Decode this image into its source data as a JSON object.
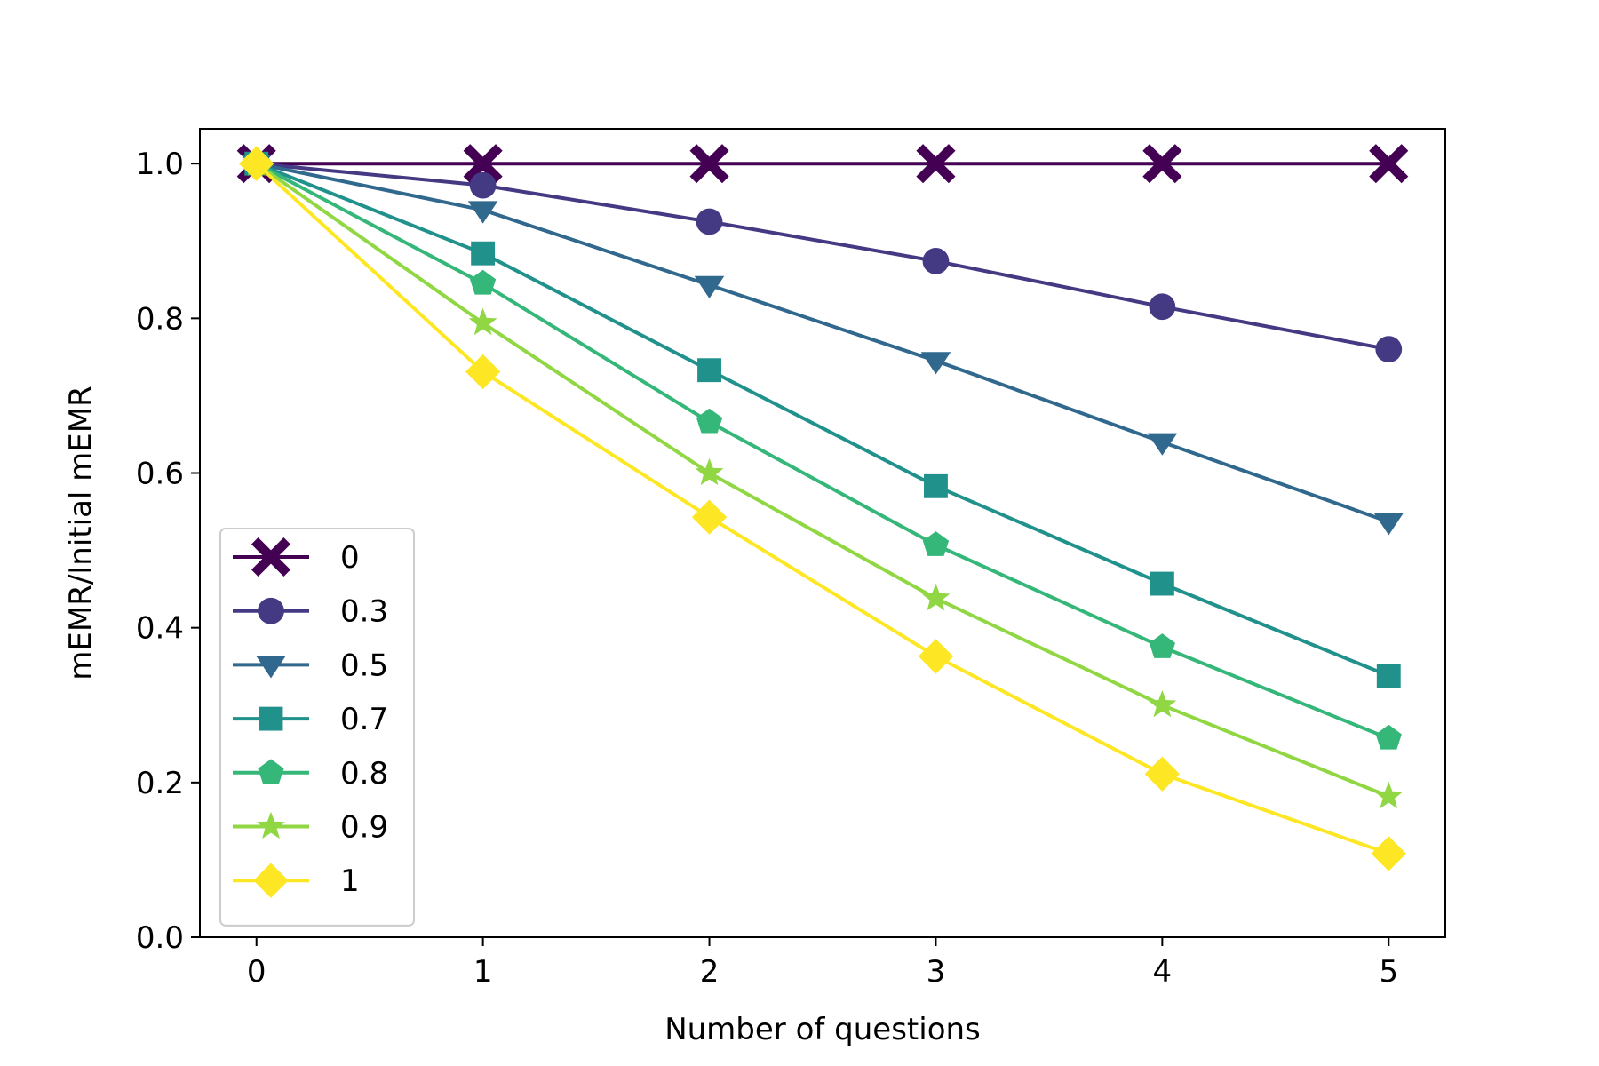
{
  "chart_data": {
    "type": "line",
    "title": "",
    "xlabel": "Number of questions",
    "ylabel": "mEMR/Initial mEMR",
    "x": [
      0,
      1,
      2,
      3,
      4,
      5
    ],
    "xticks": [
      0,
      1,
      2,
      3,
      4,
      5
    ],
    "yticks": [
      0.0,
      0.2,
      0.4,
      0.6,
      0.8,
      1.0
    ],
    "ytick_labels": [
      "0.0",
      "0.2",
      "0.4",
      "0.6",
      "0.8",
      "1.0"
    ],
    "xlim": [
      -0.25,
      5.25
    ],
    "ylim": [
      0.0,
      1.045
    ],
    "grid": false,
    "legend_position": "lower-left",
    "series": [
      {
        "name": "0",
        "color": "#440154",
        "marker": "x-filled",
        "values": [
          1.0,
          1.0,
          1.0,
          1.0,
          1.0,
          1.0
        ]
      },
      {
        "name": "0.3",
        "color": "#443983",
        "marker": "circle",
        "values": [
          1.0,
          0.972,
          0.925,
          0.874,
          0.815,
          0.76
        ]
      },
      {
        "name": "0.5",
        "color": "#31688e",
        "marker": "triangle-down",
        "values": [
          1.0,
          0.94,
          0.843,
          0.745,
          0.64,
          0.537
        ]
      },
      {
        "name": "0.7",
        "color": "#21918c",
        "marker": "square",
        "values": [
          1.0,
          0.884,
          0.733,
          0.583,
          0.457,
          0.338
        ]
      },
      {
        "name": "0.8",
        "color": "#35b779",
        "marker": "pentagon",
        "values": [
          1.0,
          0.845,
          0.666,
          0.507,
          0.375,
          0.257
        ]
      },
      {
        "name": "0.9",
        "color": "#90d743",
        "marker": "star",
        "values": [
          1.0,
          0.794,
          0.6,
          0.438,
          0.3,
          0.182
        ]
      },
      {
        "name": "1",
        "color": "#fde725",
        "marker": "diamond",
        "values": [
          1.0,
          0.731,
          0.543,
          0.363,
          0.211,
          0.108
        ]
      }
    ]
  }
}
